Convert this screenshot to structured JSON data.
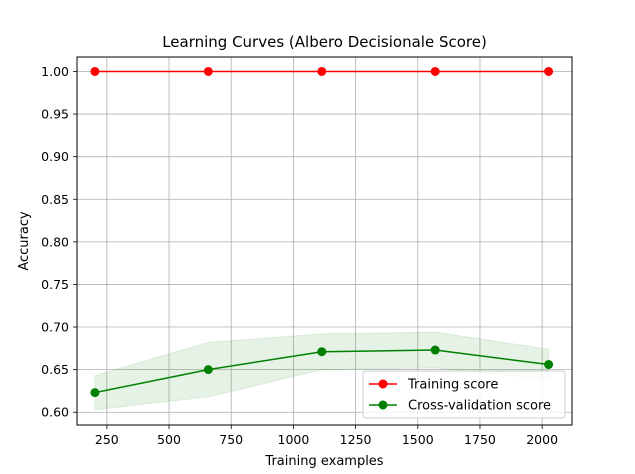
{
  "chart_data": {
    "type": "line",
    "title": "Learning Curves (Albero Decisionale Score)",
    "xlabel": "Training examples",
    "ylabel": "Accuracy",
    "xlim": [
      130,
      2120
    ],
    "ylim": [
      0.585,
      1.017
    ],
    "x_ticks": [
      250,
      500,
      750,
      1000,
      1250,
      1500,
      1750,
      2000
    ],
    "y_ticks": [
      0.6,
      0.65,
      0.7,
      0.75,
      0.8,
      0.85,
      0.9,
      0.95,
      1.0
    ],
    "grid": true,
    "legend_position": "lower-right",
    "x": [
      202,
      658,
      1114,
      1570,
      2026
    ],
    "series": [
      {
        "name": "Training score",
        "color": "#ff0000",
        "marker": "circle",
        "values": [
          1.0,
          1.0,
          1.0,
          1.0,
          1.0
        ],
        "band_lower": [
          1.0,
          1.0,
          1.0,
          1.0,
          1.0
        ],
        "band_upper": [
          1.0,
          1.0,
          1.0,
          1.0,
          1.0
        ]
      },
      {
        "name": "Cross-validation score",
        "color": "#008000",
        "marker": "circle",
        "values": [
          0.623,
          0.65,
          0.671,
          0.673,
          0.656
        ],
        "band_lower": [
          0.603,
          0.618,
          0.65,
          0.652,
          0.638
        ],
        "band_upper": [
          0.643,
          0.682,
          0.692,
          0.694,
          0.674
        ]
      }
    ]
  }
}
